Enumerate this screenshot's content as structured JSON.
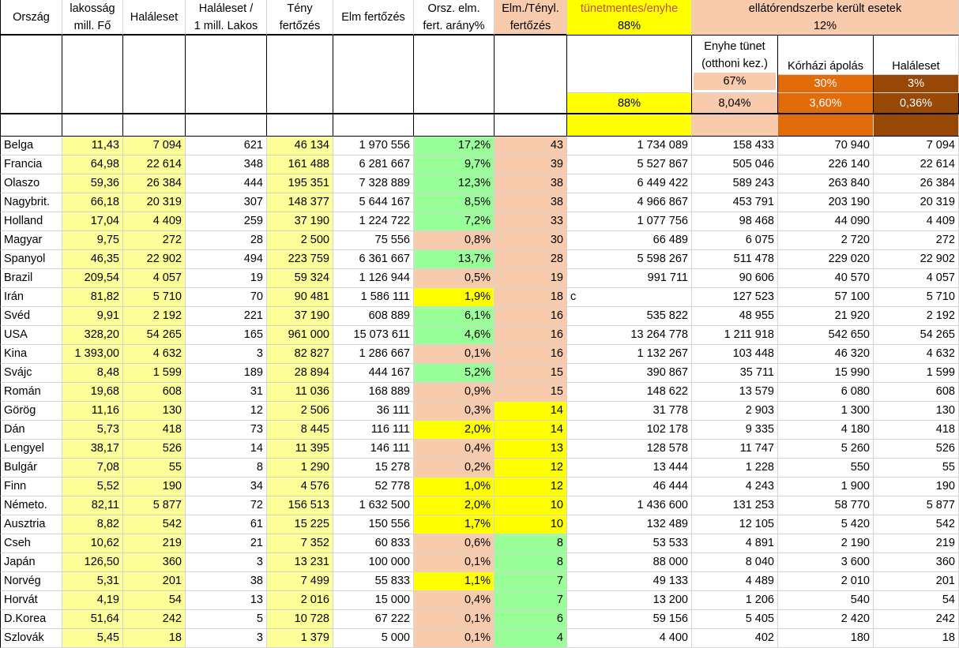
{
  "colors": {
    "yellow": "#ffff00",
    "light_yellow": "#ffff99",
    "peach": "#f8cbad",
    "green": "#99ff99",
    "orange": "#e26b0a",
    "brown": "#974706",
    "white": "#ffffff"
  },
  "headers": {
    "orszag": "Ország",
    "lakossag": [
      "lakosság",
      "mill. Fő"
    ],
    "haleset": "Haláleset",
    "haleset_per": [
      "Haláleset /",
      "1 mill. Lakos"
    ],
    "teny": [
      "Tény",
      "fertőzés"
    ],
    "elm": "Elm fertőzés",
    "orsz_elm": [
      "Orsz. elm.",
      "fert. arány%"
    ],
    "elm_teny": [
      "Elm./Tényl.",
      "fertőzés"
    ],
    "tunetmentes": [
      "tünetmentes/enyhe",
      "88%"
    ],
    "ellato": [
      "ellátórendszerbe került esetek",
      "12%"
    ],
    "enyhe": [
      "Enyhe tünet",
      "(otthoni kez.)",
      "67%"
    ],
    "korhazi": [
      "Kórházi ápolás",
      "30%"
    ],
    "haleset2": [
      "Haláleset",
      "3%"
    ],
    "pct_row": [
      "88%",
      "8,04%",
      "3,60%",
      "0,36%"
    ]
  },
  "rows": [
    [
      "Belga",
      "11,43",
      "7 094",
      "621",
      "46 134",
      "1 970 556",
      "17,2%",
      "43",
      "1 734 089",
      "158 433",
      "70 940",
      "7 094"
    ],
    [
      "Francia",
      "64,98",
      "22 614",
      "348",
      "161 488",
      "6 281 667",
      "9,7%",
      "39",
      "5 527 867",
      "505 046",
      "226 140",
      "22 614"
    ],
    [
      "Olaszo",
      "59,36",
      "26 384",
      "444",
      "195 351",
      "7 328 889",
      "12,3%",
      "38",
      "6 449 422",
      "589 243",
      "263 840",
      "26 384"
    ],
    [
      "Nagybrit.",
      "66,18",
      "20 319",
      "307",
      "148 377",
      "5 644 167",
      "8,5%",
      "38",
      "4 966 867",
      "453 791",
      "203 190",
      "20 319"
    ],
    [
      "Holland",
      "17,04",
      "4 409",
      "259",
      "37 190",
      "1 224 722",
      "7,2%",
      "33",
      "1 077 756",
      "98 468",
      "44 090",
      "4 409"
    ],
    [
      "Magyar",
      "9,75",
      "272",
      "28",
      "2 500",
      "75 556",
      "0,8%",
      "30",
      "66 489",
      "6 075",
      "2 720",
      "272"
    ],
    [
      "Spanyol",
      "46,35",
      "22 902",
      "494",
      "223 759",
      "6 361 667",
      "13,7%",
      "28",
      "5 598 267",
      "511 478",
      "229 020",
      "22 902"
    ],
    [
      "Brazil",
      "209,54",
      "4 057",
      "19",
      "59 324",
      "1 126 944",
      "0,5%",
      "19",
      "991 711",
      "90 606",
      "40 570",
      "4 057"
    ],
    [
      "Irán",
      "81,82",
      "5 710",
      "70",
      "90 481",
      "1 586 111",
      "1,9%",
      "18",
      "c",
      "127 523",
      "57 100",
      "5 710"
    ],
    [
      "Svéd",
      "9,91",
      "2 192",
      "221",
      "37 190",
      "608 889",
      "6,1%",
      "16",
      "535 822",
      "48 955",
      "21 920",
      "2 192"
    ],
    [
      "USA",
      "328,20",
      "54 265",
      "165",
      "961 000",
      "15 073 611",
      "4,6%",
      "16",
      "13 264 778",
      "1 211 918",
      "542 650",
      "54 265"
    ],
    [
      "Kina",
      "1 393,00",
      "4 632",
      "3",
      "82 827",
      "1 286 667",
      "0,1%",
      "16",
      "1 132 267",
      "103 448",
      "46 320",
      "4 632"
    ],
    [
      "Svájc",
      "8,48",
      "1 599",
      "189",
      "28 894",
      "444 167",
      "5,2%",
      "15",
      "390 867",
      "35 711",
      "15 990",
      "1 599"
    ],
    [
      "Román",
      "19,68",
      "608",
      "31",
      "11 036",
      "168 889",
      "0,9%",
      "15",
      "148 622",
      "13 579",
      "6 080",
      "608"
    ],
    [
      "Görög",
      "11,16",
      "130",
      "12",
      "2 506",
      "36 111",
      "0,3%",
      "14",
      "31 778",
      "2 903",
      "1 300",
      "130"
    ],
    [
      "Dán",
      "5,73",
      "418",
      "73",
      "8 445",
      "116 111",
      "2,0%",
      "14",
      "102 178",
      "9 335",
      "4 180",
      "418"
    ],
    [
      "Lengyel",
      "38,17",
      "526",
      "14",
      "11 395",
      "146 111",
      "0,4%",
      "13",
      "128 578",
      "11 747",
      "5 260",
      "526"
    ],
    [
      "Bulgár",
      "7,08",
      "55",
      "8",
      "1 290",
      "15 278",
      "0,2%",
      "12",
      "13 444",
      "1 228",
      "550",
      "55"
    ],
    [
      "Finn",
      "5,52",
      "190",
      "34",
      "4 576",
      "52 778",
      "1,0%",
      "12",
      "46 444",
      "4 243",
      "1 900",
      "190"
    ],
    [
      "Németo.",
      "82,11",
      "5 877",
      "72",
      "156 513",
      "1 632 500",
      "2,0%",
      "10",
      "1 436 600",
      "131 253",
      "58 770",
      "5 877"
    ],
    [
      "Ausztria",
      "8,82",
      "542",
      "61",
      "15 225",
      "150 556",
      "1,7%",
      "10",
      "132 489",
      "12 105",
      "5 420",
      "542"
    ],
    [
      "Cseh",
      "10,62",
      "219",
      "21",
      "7 352",
      "60 833",
      "0,6%",
      "8",
      "53 533",
      "4 891",
      "2 190",
      "219"
    ],
    [
      "Japán",
      "126,50",
      "360",
      "3",
      "13 231",
      "100 000",
      "0,1%",
      "8",
      "88 000",
      "8 040",
      "3 600",
      "360"
    ],
    [
      "Norvég",
      "5,31",
      "201",
      "38",
      "7 499",
      "55 833",
      "1,1%",
      "7",
      "49 133",
      "4 489",
      "2 010",
      "201"
    ],
    [
      "Horvát",
      "4,19",
      "54",
      "13",
      "2 016",
      "15 000",
      "0,4%",
      "7",
      "13 200",
      "1 206",
      "540",
      "54"
    ],
    [
      "D.Korea",
      "51,64",
      "242",
      "5",
      "10 728",
      "67 222",
      "0,1%",
      "6",
      "59 156",
      "5 405",
      "2 420",
      "242"
    ],
    [
      "Szlovák",
      "5,45",
      "18",
      "3",
      "1 379",
      "5 000",
      "0,1%",
      "4",
      "4 400",
      "402",
      "180",
      "18"
    ]
  ]
}
